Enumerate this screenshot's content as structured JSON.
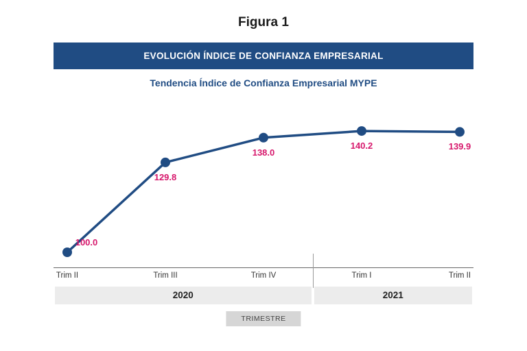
{
  "figure_label": "Figura 1",
  "title": "EVOLUCIÓN ÍNDICE DE CONFIANZA EMPRESARIAL",
  "subtitle": "Tendencia Índice de Confianza Empresarial MYPE",
  "x_axis_label": "TRIMESTRE",
  "chart": {
    "type": "line",
    "y_min": 95,
    "y_max": 145,
    "line_color": "#204c83",
    "line_width": 3.5,
    "marker_radius": 7,
    "marker_fill": "#204c83",
    "value_label_color": "#d6166b",
    "value_label_fontsize": 13,
    "background_color": "#ffffff",
    "points": [
      {
        "tick": "Trim II",
        "value": 100.0,
        "label": "100.0",
        "year_group": 0
      },
      {
        "tick": "Trim III",
        "value": 129.8,
        "label": "129.8",
        "year_group": 0
      },
      {
        "tick": "Trim IV",
        "value": 138.0,
        "label": "138.0",
        "year_group": 0
      },
      {
        "tick": "Trim I",
        "value": 140.2,
        "label": "140.2",
        "year_group": 1
      },
      {
        "tick": "Trim II",
        "value": 139.9,
        "label": "139.9",
        "year_group": 1
      }
    ],
    "year_groups": [
      {
        "label": "2020",
        "span": 3
      },
      {
        "label": "2021",
        "span": 2
      }
    ],
    "year_band_bg": "#ececec",
    "axis_chip_bg": "#d6d6d6"
  }
}
